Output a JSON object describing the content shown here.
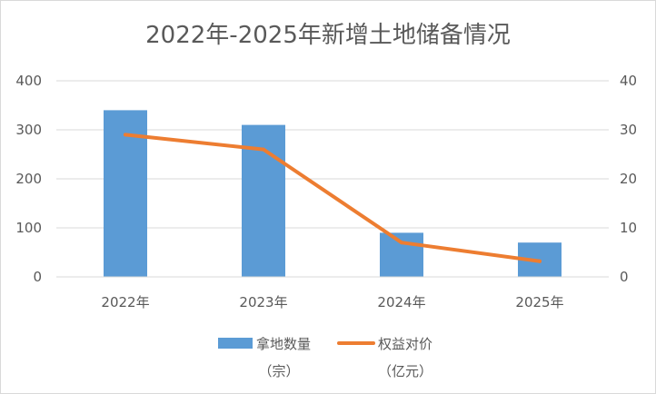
{
  "chart_data": {
    "type": "bar+line",
    "title": "2022年-2025年新增土地储备情况",
    "categories": [
      "2022年",
      "2023年",
      "2024年",
      "2025年"
    ],
    "series": [
      {
        "name": "拿地数量",
        "unit": "（宗）",
        "type": "bar",
        "axis": "left",
        "color": "#5b9bd5",
        "values": [
          340,
          310,
          90,
          70
        ]
      },
      {
        "name": "权益对价",
        "unit": "（亿元）",
        "type": "line",
        "axis": "right",
        "color": "#ed7d31",
        "values": [
          29,
          26,
          7,
          3.2
        ]
      }
    ],
    "y_left": {
      "min": 0,
      "max": 400,
      "ticks": [
        0,
        100,
        200,
        300,
        400
      ]
    },
    "y_right": {
      "min": 0,
      "max": 40,
      "ticks": [
        0,
        10,
        20,
        30,
        40
      ]
    },
    "grid": true,
    "legend": "bottom"
  }
}
